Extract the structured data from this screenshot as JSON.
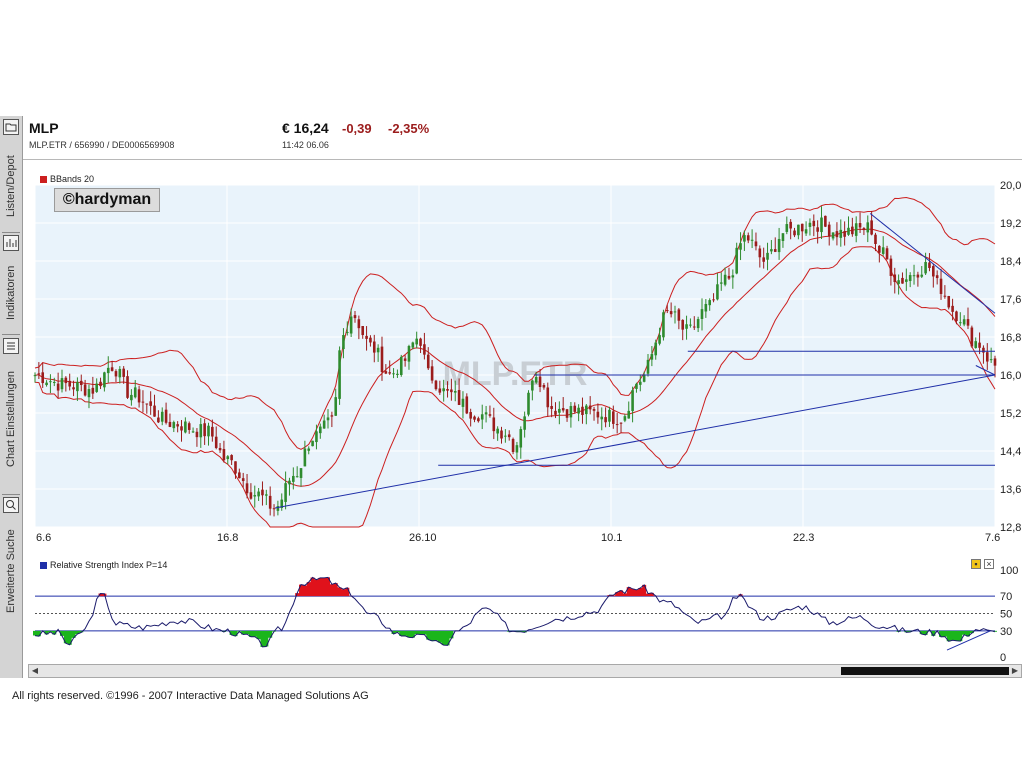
{
  "sidebar": {
    "items": [
      {
        "label": "Listen/Depot",
        "icon": "folder-icon"
      },
      {
        "label": "Indikatoren",
        "icon": "chart-icon"
      },
      {
        "label": "Chart Einstellungen",
        "icon": "list-icon"
      },
      {
        "label": "Erweiterte Suche",
        "icon": "search-icon"
      }
    ]
  },
  "header": {
    "symbol": "MLP",
    "subtitle": "MLP.ETR  /  656990  /  DE0006569908",
    "price": "€ 16,24",
    "change": "-0,39",
    "change_pct": "-2,35%",
    "time": "11:42   06.06"
  },
  "colors": {
    "up": "#2e8b2e",
    "down": "#9b1c1c",
    "band": "#cc1f1f",
    "trend": "#1f2fa8",
    "plot_bg": "#e9f3fb"
  },
  "chart_data": [
    {
      "type": "candlestick",
      "legend": "BBands 20",
      "watermark": "MLP.ETR",
      "badge": "©hardyman",
      "y_ticks": [
        "20,0",
        "19,2",
        "18,4",
        "17,6",
        "16,8",
        "16,0",
        "15,2",
        "14,4",
        "13,6",
        "12,8"
      ],
      "ylim": [
        12.8,
        20.0
      ],
      "x_ticks": [
        "6.6",
        "16.8",
        "26.10",
        "10.1",
        "22.3",
        "7.6"
      ],
      "price_anchors": [
        [
          0,
          16.0
        ],
        [
          0.03,
          15.8
        ],
        [
          0.06,
          15.7
        ],
        [
          0.08,
          16.2
        ],
        [
          0.1,
          15.6
        ],
        [
          0.14,
          15.0
        ],
        [
          0.18,
          14.8
        ],
        [
          0.2,
          14.2
        ],
        [
          0.23,
          13.5
        ],
        [
          0.25,
          13.2
        ],
        [
          0.27,
          13.9
        ],
        [
          0.29,
          14.7
        ],
        [
          0.31,
          15.0
        ],
        [
          0.32,
          16.8
        ],
        [
          0.33,
          17.3
        ],
        [
          0.35,
          16.6
        ],
        [
          0.37,
          16.0
        ],
        [
          0.38,
          16.2
        ],
        [
          0.4,
          16.8
        ],
        [
          0.41,
          16.0
        ],
        [
          0.43,
          15.6
        ],
        [
          0.46,
          15.2
        ],
        [
          0.49,
          14.8
        ],
        [
          0.5,
          14.5
        ],
        [
          0.51,
          15.2
        ],
        [
          0.52,
          16.1
        ],
        [
          0.54,
          15.3
        ],
        [
          0.58,
          15.2
        ],
        [
          0.61,
          15.1
        ],
        [
          0.63,
          15.9
        ],
        [
          0.66,
          17.3
        ],
        [
          0.68,
          16.9
        ],
        [
          0.7,
          17.4
        ],
        [
          0.72,
          18.0
        ],
        [
          0.74,
          18.9
        ],
        [
          0.76,
          18.4
        ],
        [
          0.78,
          19.0
        ],
        [
          0.81,
          19.2
        ],
        [
          0.84,
          19.0
        ],
        [
          0.87,
          19.1
        ],
        [
          0.88,
          18.6
        ],
        [
          0.9,
          18.0
        ],
        [
          0.93,
          18.3
        ],
        [
          0.94,
          17.9
        ],
        [
          0.96,
          17.3
        ],
        [
          0.98,
          16.7
        ],
        [
          1.0,
          16.2
        ]
      ],
      "trendlines": [
        {
          "from": [
            0.25,
            13.2
          ],
          "to": [
            1.0,
            16.0
          ]
        },
        {
          "from": [
            0.42,
            14.1
          ],
          "to": [
            1.0,
            14.1
          ]
        },
        {
          "from": [
            0.52,
            16.0
          ],
          "to": [
            1.0,
            16.0
          ]
        },
        {
          "from": [
            0.68,
            16.5
          ],
          "to": [
            1.0,
            16.5
          ]
        },
        {
          "from": [
            0.87,
            19.4
          ],
          "to": [
            1.0,
            17.3
          ]
        },
        {
          "from": [
            0.98,
            16.2
          ],
          "to": [
            1.0,
            16.0
          ]
        }
      ]
    },
    {
      "type": "line",
      "legend": "Relative Strength Index P=14",
      "y_ticks": [
        "100",
        "70",
        "50",
        "30",
        "0"
      ],
      "levels": [
        70,
        50,
        30
      ],
      "ylim": [
        0,
        100
      ],
      "rsi_anchors": [
        [
          0,
          26
        ],
        [
          0.025,
          28
        ],
        [
          0.035,
          14
        ],
        [
          0.05,
          30
        ],
        [
          0.07,
          72
        ],
        [
          0.085,
          38
        ],
        [
          0.11,
          34
        ],
        [
          0.15,
          42
        ],
        [
          0.2,
          30
        ],
        [
          0.22,
          24
        ],
        [
          0.24,
          14
        ],
        [
          0.255,
          32
        ],
        [
          0.28,
          86
        ],
        [
          0.3,
          90
        ],
        [
          0.325,
          76
        ],
        [
          0.35,
          48
        ],
        [
          0.38,
          26
        ],
        [
          0.41,
          22
        ],
        [
          0.425,
          12
        ],
        [
          0.44,
          30
        ],
        [
          0.47,
          55
        ],
        [
          0.5,
          30
        ],
        [
          0.55,
          45
        ],
        [
          0.58,
          52
        ],
        [
          0.61,
          76
        ],
        [
          0.63,
          80
        ],
        [
          0.66,
          62
        ],
        [
          0.69,
          40
        ],
        [
          0.72,
          48
        ],
        [
          0.73,
          70
        ],
        [
          0.76,
          45
        ],
        [
          0.8,
          58
        ],
        [
          0.83,
          40
        ],
        [
          0.86,
          46
        ],
        [
          0.88,
          36
        ],
        [
          0.91,
          30
        ],
        [
          0.94,
          28
        ],
        [
          0.96,
          18
        ],
        [
          0.98,
          32
        ],
        [
          1.0,
          28
        ]
      ],
      "trendline": {
        "from": [
          0.95,
          8
        ],
        "to": [
          0.995,
          30
        ]
      }
    }
  ],
  "scrollbar": {
    "left": "◀",
    "right": "▶"
  },
  "footer": "All rights reserved. ©1996 - 2007 Interactive Data Managed Solutions AG"
}
